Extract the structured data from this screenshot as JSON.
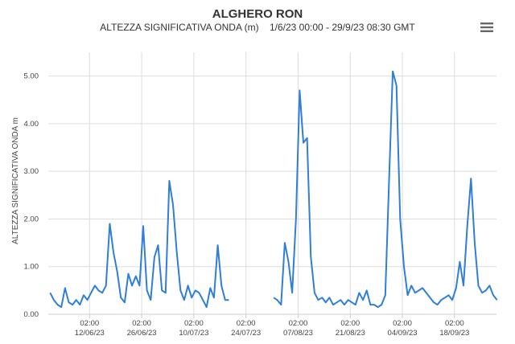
{
  "header": {
    "title": "ALGHERO RON",
    "subtitle": "ALTEZZA SIGNIFICATIVA ONDA (m)    1/6/23 00:00 - 29/9/23 08:30 GMT"
  },
  "icons": {
    "menu": "hamburger-menu-icon"
  },
  "colors": {
    "series": "#2f7ed8",
    "grid": "#dddddd",
    "text": "#333333"
  },
  "chart_data": {
    "type": "line",
    "title": "ALGHERO RON",
    "subtitle": "ALTEZZA SIGNIFICATIVA ONDA (m)    1/6/23 00:00 - 29/9/23 08:30 GMT",
    "ylabel": "ALTEZZA SIGNIFICATIVA ONDA m",
    "xlabel": "",
    "ylim": [
      0,
      5.5
    ],
    "xlim": [
      "2023-06-01",
      "2023-09-29"
    ],
    "grid": true,
    "legend": "none",
    "yticks": [
      {
        "value": 0,
        "label": "0.00"
      },
      {
        "value": 1,
        "label": "1.00"
      },
      {
        "value": 2,
        "label": "2.00"
      },
      {
        "value": 3,
        "label": "3.00"
      },
      {
        "value": 4,
        "label": "4.00"
      },
      {
        "value": 5,
        "label": "5.00"
      }
    ],
    "xticks": [
      {
        "date": "2023-06-12",
        "time": "02:00",
        "label": "12/06/23"
      },
      {
        "date": "2023-06-26",
        "time": "02:00",
        "label": "26/06/23"
      },
      {
        "date": "2023-07-10",
        "time": "02:00",
        "label": "10/07/23"
      },
      {
        "date": "2023-07-24",
        "time": "02:00",
        "label": "24/07/23"
      },
      {
        "date": "2023-08-07",
        "time": "02:00",
        "label": "07/08/23"
      },
      {
        "date": "2023-08-21",
        "time": "02:00",
        "label": "21/08/23"
      },
      {
        "date": "2023-09-04",
        "time": "02:00",
        "label": "04/09/23"
      },
      {
        "date": "2023-09-18",
        "time": "02:00",
        "label": "18/09/23"
      }
    ],
    "series": [
      {
        "color": "#2f7ed8",
        "segments": [
          [
            [
              "2023-06-01",
              0.45
            ],
            [
              "2023-06-02",
              0.3
            ],
            [
              "2023-06-03",
              0.2
            ],
            [
              "2023-06-04",
              0.15
            ],
            [
              "2023-06-05",
              0.55
            ],
            [
              "2023-06-06",
              0.25
            ],
            [
              "2023-06-07",
              0.2
            ],
            [
              "2023-06-08",
              0.3
            ],
            [
              "2023-06-09",
              0.2
            ],
            [
              "2023-06-10",
              0.4
            ],
            [
              "2023-06-11",
              0.3
            ],
            [
              "2023-06-12",
              0.45
            ],
            [
              "2023-06-13",
              0.6
            ],
            [
              "2023-06-14",
              0.5
            ],
            [
              "2023-06-15",
              0.45
            ],
            [
              "2023-06-16",
              0.6
            ],
            [
              "2023-06-17",
              1.9
            ],
            [
              "2023-06-18",
              1.3
            ],
            [
              "2023-06-19",
              0.9
            ],
            [
              "2023-06-20",
              0.35
            ],
            [
              "2023-06-21",
              0.25
            ],
            [
              "2023-06-22",
              0.85
            ],
            [
              "2023-06-23",
              0.6
            ],
            [
              "2023-06-24",
              0.8
            ],
            [
              "2023-06-25",
              0.6
            ],
            [
              "2023-06-26",
              1.85
            ],
            [
              "2023-06-27",
              0.5
            ],
            [
              "2023-06-28",
              0.3
            ],
            [
              "2023-06-29",
              1.2
            ],
            [
              "2023-06-30",
              1.45
            ],
            [
              "2023-07-01",
              0.5
            ],
            [
              "2023-07-02",
              0.45
            ],
            [
              "2023-07-03",
              2.8
            ],
            [
              "2023-07-04",
              2.3
            ],
            [
              "2023-07-05",
              1.3
            ],
            [
              "2023-07-06",
              0.5
            ],
            [
              "2023-07-07",
              0.3
            ],
            [
              "2023-07-08",
              0.6
            ],
            [
              "2023-07-09",
              0.35
            ],
            [
              "2023-07-10",
              0.5
            ],
            [
              "2023-07-11",
              0.45
            ],
            [
              "2023-07-12",
              0.3
            ],
            [
              "2023-07-13",
              0.15
            ],
            [
              "2023-07-14",
              0.55
            ],
            [
              "2023-07-15",
              0.35
            ],
            [
              "2023-07-16",
              1.45
            ],
            [
              "2023-07-17",
              0.6
            ],
            [
              "2023-07-18",
              0.3
            ],
            [
              "2023-07-19",
              0.3
            ]
          ],
          [
            [
              "2023-07-31",
              0.35
            ],
            [
              "2023-08-01",
              0.3
            ],
            [
              "2023-08-02",
              0.2
            ],
            [
              "2023-08-03",
              1.5
            ],
            [
              "2023-08-04",
              1.1
            ],
            [
              "2023-08-05",
              0.45
            ],
            [
              "2023-08-06",
              2.0
            ],
            [
              "2023-08-07",
              4.7
            ],
            [
              "2023-08-08",
              3.6
            ],
            [
              "2023-08-09",
              3.7
            ],
            [
              "2023-08-10",
              1.2
            ],
            [
              "2023-08-11",
              0.45
            ],
            [
              "2023-08-12",
              0.3
            ],
            [
              "2023-08-13",
              0.35
            ],
            [
              "2023-08-14",
              0.25
            ],
            [
              "2023-08-15",
              0.35
            ],
            [
              "2023-08-16",
              0.2
            ],
            [
              "2023-08-17",
              0.25
            ],
            [
              "2023-08-18",
              0.3
            ],
            [
              "2023-08-19",
              0.2
            ],
            [
              "2023-08-20",
              0.3
            ],
            [
              "2023-08-21",
              0.25
            ],
            [
              "2023-08-22",
              0.2
            ],
            [
              "2023-08-23",
              0.45
            ],
            [
              "2023-08-24",
              0.3
            ],
            [
              "2023-08-25",
              0.5
            ],
            [
              "2023-08-26",
              0.2
            ],
            [
              "2023-08-27",
              0.2
            ],
            [
              "2023-08-28",
              0.15
            ],
            [
              "2023-08-29",
              0.2
            ],
            [
              "2023-08-30",
              0.4
            ],
            [
              "2023-08-31",
              2.8
            ],
            [
              "2023-09-01",
              5.1
            ],
            [
              "2023-09-02",
              4.8
            ],
            [
              "2023-09-03",
              2.0
            ],
            [
              "2023-09-04",
              1.0
            ],
            [
              "2023-09-05",
              0.4
            ],
            [
              "2023-09-06",
              0.6
            ],
            [
              "2023-09-07",
              0.45
            ],
            [
              "2023-09-08",
              0.5
            ],
            [
              "2023-09-09",
              0.55
            ],
            [
              "2023-09-10",
              0.45
            ],
            [
              "2023-09-11",
              0.35
            ],
            [
              "2023-09-12",
              0.25
            ],
            [
              "2023-09-13",
              0.2
            ],
            [
              "2023-09-14",
              0.3
            ],
            [
              "2023-09-15",
              0.35
            ],
            [
              "2023-09-16",
              0.4
            ],
            [
              "2023-09-17",
              0.3
            ],
            [
              "2023-09-18",
              0.55
            ],
            [
              "2023-09-19",
              1.1
            ],
            [
              "2023-09-20",
              0.6
            ],
            [
              "2023-09-21",
              1.85
            ],
            [
              "2023-09-22",
              2.85
            ],
            [
              "2023-09-23",
              1.5
            ],
            [
              "2023-09-24",
              0.6
            ],
            [
              "2023-09-25",
              0.45
            ],
            [
              "2023-09-26",
              0.5
            ],
            [
              "2023-09-27",
              0.6
            ],
            [
              "2023-09-28",
              0.4
            ],
            [
              "2023-09-29",
              0.3
            ]
          ]
        ]
      }
    ]
  }
}
